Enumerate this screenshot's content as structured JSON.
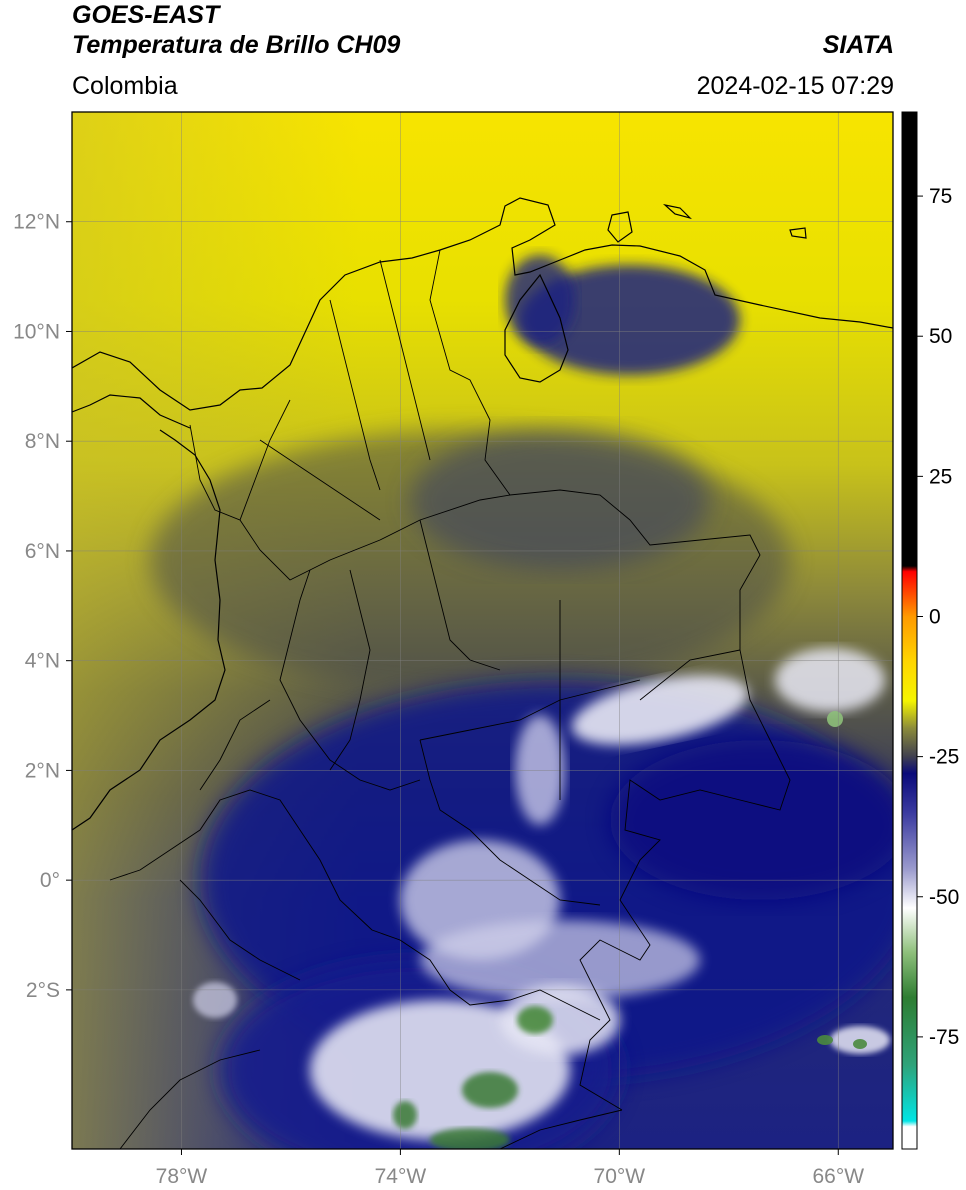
{
  "header": {
    "satellite": "GOES-EAST",
    "product": "Temperatura de Brillo CH09",
    "brand": "SIATA",
    "region": "Colombia",
    "timestamp": "2024-02-15 07:29"
  },
  "map": {
    "lon_range": [
      -80,
      -65
    ],
    "lat_range": [
      -4.9,
      14.0
    ],
    "lon_ticks": [
      {
        "value": -78,
        "label": "78°W"
      },
      {
        "value": -74,
        "label": "74°W"
      },
      {
        "value": -70,
        "label": "70°W"
      },
      {
        "value": -66,
        "label": "66°W"
      }
    ],
    "lat_ticks": [
      {
        "value": 12,
        "label": "12°N"
      },
      {
        "value": 10,
        "label": "10°N"
      },
      {
        "value": 8,
        "label": "8°N"
      },
      {
        "value": 6,
        "label": "6°N"
      },
      {
        "value": 4,
        "label": "4°N"
      },
      {
        "value": 2,
        "label": "2°N"
      },
      {
        "value": 0,
        "label": "0°"
      },
      {
        "value": -2,
        "label": "2°S"
      }
    ],
    "grid": true
  },
  "colorbar": {
    "range": [
      -95,
      90
    ],
    "ticks": [
      {
        "value": 75,
        "label": "75"
      },
      {
        "value": 50,
        "label": "50"
      },
      {
        "value": 25,
        "label": "25"
      },
      {
        "value": 0,
        "label": "0"
      },
      {
        "value": -25,
        "label": "-25"
      },
      {
        "value": -50,
        "label": "-50"
      },
      {
        "value": -75,
        "label": "-75"
      }
    ],
    "stops": [
      {
        "value": -95,
        "color": "#ffffff"
      },
      {
        "value": -91,
        "color": "#ffffff"
      },
      {
        "value": -90,
        "color": "#00e5e5"
      },
      {
        "value": -80,
        "color": "#2fa37a"
      },
      {
        "value": -68,
        "color": "#2e7d32"
      },
      {
        "value": -60,
        "color": "#8dbf7a"
      },
      {
        "value": -52,
        "color": "#ffffff"
      },
      {
        "value": -45,
        "color": "#9a9acd"
      },
      {
        "value": -35,
        "color": "#3a3aa0"
      },
      {
        "value": -28,
        "color": "#0a0a7a"
      },
      {
        "value": -25,
        "color": "#404050"
      },
      {
        "value": -20,
        "color": "#8a8a3a"
      },
      {
        "value": -15,
        "color": "#f5f500"
      },
      {
        "value": -8,
        "color": "#ffd500"
      },
      {
        "value": 0,
        "color": "#ff9a00"
      },
      {
        "value": 8,
        "color": "#ff0000"
      },
      {
        "value": 9,
        "color": "#000000"
      },
      {
        "value": 90,
        "color": "#000000"
      }
    ]
  }
}
